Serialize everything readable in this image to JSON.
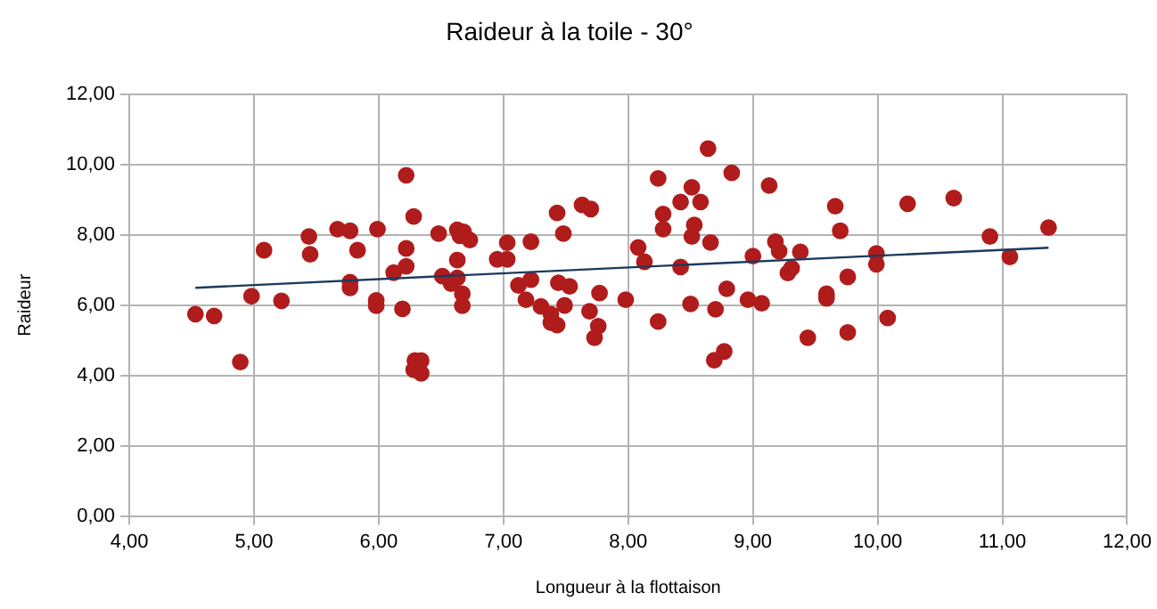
{
  "chart_data": {
    "type": "scatter",
    "title": "Raideur à la toile - 30°",
    "xlabel": "Longueur à la flottaison",
    "ylabel": "Raideur",
    "xlim": [
      4,
      12
    ],
    "xticks": [
      {
        "value": 4,
        "label": "4,00"
      },
      {
        "value": 5,
        "label": "5,00"
      },
      {
        "value": 6,
        "label": "6,00"
      },
      {
        "value": 7,
        "label": "7,00"
      },
      {
        "value": 8,
        "label": "8,00"
      },
      {
        "value": 9,
        "label": "9,00"
      },
      {
        "value": 10,
        "label": "10,00"
      },
      {
        "value": 11,
        "label": "11,00"
      },
      {
        "value": 12,
        "label": "12,00"
      }
    ],
    "ylim": [
      0,
      12
    ],
    "yticks": [
      {
        "value": 0,
        "label": "0,00"
      },
      {
        "value": 2,
        "label": "2,00"
      },
      {
        "value": 4,
        "label": "4,00"
      },
      {
        "value": 6,
        "label": "6,00"
      },
      {
        "value": 8,
        "label": "8,00"
      },
      {
        "value": 10,
        "label": "10,00"
      },
      {
        "value": 12,
        "label": "12,00"
      }
    ],
    "grid": true,
    "legend": false,
    "series": [
      {
        "marker": "circle",
        "color": "#b01c1c",
        "x": [
          4.53,
          4.68,
          4.89,
          4.98,
          5.08,
          5.22,
          5.44,
          5.45,
          5.67,
          5.77,
          5.77,
          5.77,
          5.83,
          5.99,
          5.98,
          5.98,
          6.12,
          6.19,
          6.22,
          6.22,
          6.22,
          6.28,
          6.29,
          6.34,
          6.34,
          6.28,
          6.48,
          6.51,
          6.58,
          6.63,
          6.65,
          6.68,
          6.73,
          6.63,
          6.63,
          6.67,
          6.67,
          6.95,
          7.03,
          7.03,
          7.22,
          7.43,
          7.48,
          7.63,
          7.7,
          7.12,
          7.22,
          7.18,
          7.3,
          7.44,
          7.53,
          7.38,
          7.38,
          7.43,
          7.49,
          7.77,
          7.69,
          7.76,
          7.73,
          7.98,
          8.08,
          8.13,
          8.24,
          8.28,
          8.28,
          8.24,
          8.42,
          8.42,
          8.51,
          8.58,
          8.53,
          8.51,
          8.66,
          8.5,
          8.64,
          8.83,
          8.7,
          8.79,
          8.69,
          8.77,
          8.96,
          9.07,
          9.0,
          9.13,
          9.18,
          9.21,
          9.38,
          9.28,
          9.31,
          9.44,
          9.66,
          9.7,
          9.76,
          9.59,
          9.59,
          9.76,
          9.99,
          9.99,
          10.08,
          10.24,
          10.61,
          10.9,
          11.06,
          11.37
        ],
        "values": [
          5.74,
          5.69,
          4.38,
          6.25,
          7.56,
          6.12,
          7.95,
          7.44,
          8.16,
          8.11,
          6.65,
          6.49,
          7.56,
          8.16,
          6.13,
          5.98,
          6.92,
          5.89,
          9.69,
          7.61,
          7.1,
          8.52,
          4.42,
          4.42,
          4.06,
          4.16,
          8.03,
          6.82,
          6.61,
          8.14,
          7.97,
          8.08,
          7.85,
          7.28,
          6.77,
          6.32,
          5.98,
          7.3,
          7.77,
          7.3,
          7.8,
          8.62,
          8.03,
          8.85,
          8.73,
          6.56,
          6.72,
          6.15,
          5.96,
          6.63,
          6.53,
          5.74,
          5.5,
          5.43,
          5.99,
          6.34,
          5.82,
          5.4,
          5.07,
          6.15,
          7.64,
          7.23,
          9.6,
          8.59,
          8.16,
          5.53,
          7.08,
          8.93,
          9.35,
          8.93,
          8.28,
          7.95,
          7.78,
          6.03,
          10.45,
          9.76,
          5.88,
          6.46,
          4.43,
          4.68,
          6.15,
          6.05,
          7.39,
          9.4,
          7.8,
          7.53,
          7.51,
          6.91,
          7.05,
          5.07,
          8.81,
          8.11,
          6.8,
          6.32,
          6.19,
          5.22,
          7.47,
          7.16,
          5.63,
          8.88,
          9.04,
          7.95,
          7.37,
          8.2
        ]
      },
      {
        "type": "line",
        "color": "#1a3a5c",
        "x": [
          4.53,
          11.37
        ],
        "values": [
          6.49,
          7.63
        ]
      }
    ]
  }
}
